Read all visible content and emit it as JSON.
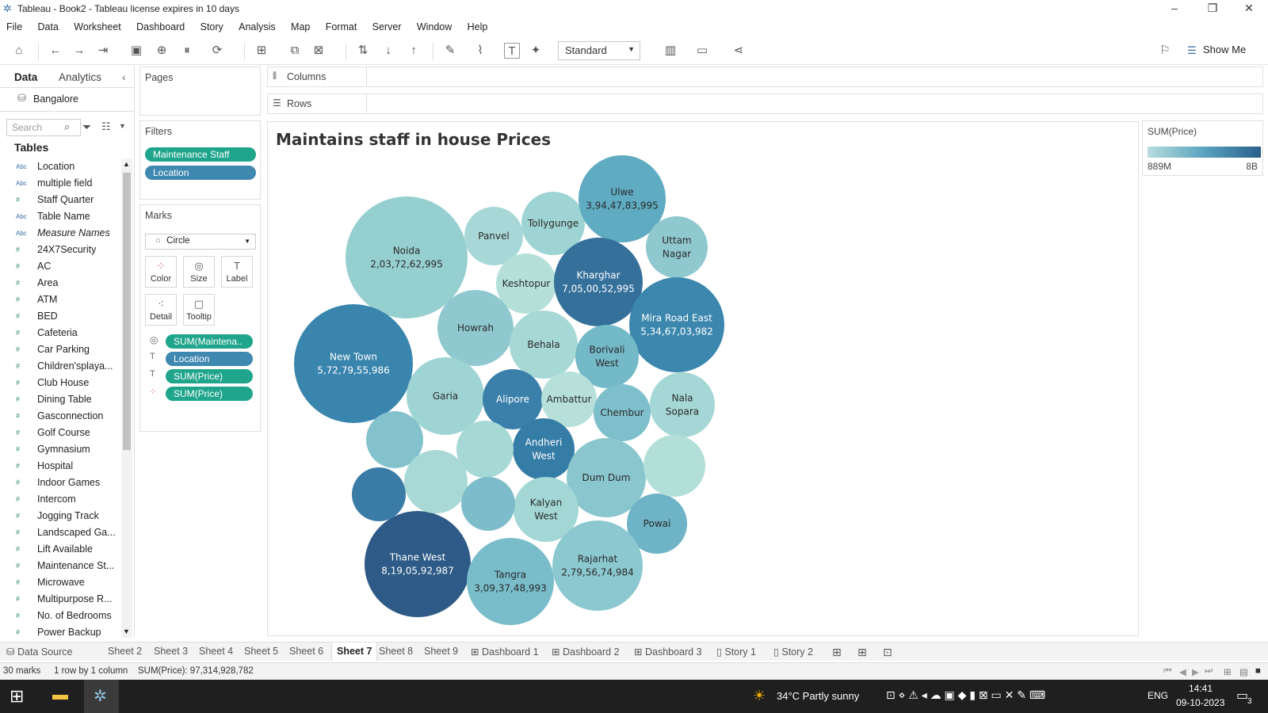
{
  "window": {
    "title": "Tableau - Book2 - Tableau license expires in 10 days",
    "minimize": "–",
    "maximize": "❐",
    "close": "✕"
  },
  "menu": [
    "File",
    "Data",
    "Worksheet",
    "Dashboard",
    "Story",
    "Analysis",
    "Map",
    "Format",
    "Server",
    "Window",
    "Help"
  ],
  "toolbar": {
    "fit_select": "Standard",
    "show_me": "Show Me"
  },
  "datapane": {
    "tab_data": "Data",
    "tab_analytics": "Analytics",
    "datasource": "Bangalore",
    "search_placeholder": "Search",
    "tables_heading": "Tables",
    "fields": [
      {
        "type": "abc",
        "name": "Location"
      },
      {
        "type": "abc",
        "name": "multiple field"
      },
      {
        "type": "num",
        "name": "Staff Quarter"
      },
      {
        "type": "abc",
        "name": "Table Name"
      },
      {
        "type": "abc",
        "name": "Measure Names"
      },
      {
        "type": "num",
        "name": "24X7Security"
      },
      {
        "type": "num",
        "name": "AC"
      },
      {
        "type": "num",
        "name": "Area"
      },
      {
        "type": "num",
        "name": "ATM"
      },
      {
        "type": "num",
        "name": "BED"
      },
      {
        "type": "num",
        "name": "Cafeteria"
      },
      {
        "type": "num",
        "name": "Car Parking"
      },
      {
        "type": "num",
        "name": "Children'splaya..."
      },
      {
        "type": "num",
        "name": "Club House"
      },
      {
        "type": "num",
        "name": "Dining Table"
      },
      {
        "type": "num",
        "name": "Gasconnection"
      },
      {
        "type": "num",
        "name": "Golf Course"
      },
      {
        "type": "num",
        "name": "Gymnasium"
      },
      {
        "type": "num",
        "name": "Hospital"
      },
      {
        "type": "num",
        "name": "Indoor Games"
      },
      {
        "type": "num",
        "name": "Intercom"
      },
      {
        "type": "num",
        "name": "Jogging Track"
      },
      {
        "type": "num",
        "name": "Landscaped Ga..."
      },
      {
        "type": "num",
        "name": "Lift Available"
      },
      {
        "type": "num",
        "name": "Maintenance St..."
      },
      {
        "type": "num",
        "name": "Microwave"
      },
      {
        "type": "num",
        "name": "Multipurpose R..."
      },
      {
        "type": "num",
        "name": "No. of Bedrooms"
      },
      {
        "type": "num",
        "name": "Power Backup"
      }
    ]
  },
  "pages_card": {
    "title": "Pages"
  },
  "filters_card": {
    "title": "Filters",
    "pills": [
      "Maintenance Staff",
      "Location"
    ]
  },
  "marks_card": {
    "title": "Marks",
    "mark_type": "Circle",
    "buttons": [
      "Color",
      "Size",
      "Label",
      "Detail",
      "Tooltip"
    ],
    "pills": [
      "SUM(Maintena..",
      "Location",
      "SUM(Price)",
      "SUM(Price)"
    ]
  },
  "shelves": {
    "columns": "Columns",
    "rows": "Rows"
  },
  "viz": {
    "title": "Maintains staff in house Prices"
  },
  "legend": {
    "title": "SUM(Price)",
    "min_label": "889M",
    "max_label": "8B"
  },
  "chart_data": {
    "type": "packed-bubble",
    "title": "Maintains staff in house Prices",
    "color_measure": "SUM(Price)",
    "size_measure": "SUM(Maintenance Staff)",
    "color_range": {
      "min": "889M",
      "max": "8B"
    },
    "bubbles": [
      {
        "label": "Noida",
        "value": "2,03,72,62,995",
        "color": "#96cfd0"
      },
      {
        "label": "Panvel",
        "value": "",
        "color": "#a7d8d7"
      },
      {
        "label": "Tollygunge",
        "value": "",
        "color": "#9fd4d4"
      },
      {
        "label": "Ulwe",
        "value": "3,94,47,83,995",
        "color": "#5fabc2"
      },
      {
        "label": "Uttam Nagar",
        "value": "",
        "color": "#8fc9cf"
      },
      {
        "label": "Keshtopur",
        "value": "",
        "color": "#b5e0d9"
      },
      {
        "label": "Kharghar",
        "value": "7,05,00,52,995",
        "color": "#35709b"
      },
      {
        "label": "Mira Road East",
        "value": "5,34,67,03,982",
        "color": "#3c87ae"
      },
      {
        "label": "Howrah",
        "value": "",
        "color": "#8fc9cf"
      },
      {
        "label": "Behala",
        "value": "",
        "color": "#a6d8d6"
      },
      {
        "label": "Borivali West",
        "value": "",
        "color": "#74b9c8"
      },
      {
        "label": "New Town",
        "value": "5,72,79,55,986",
        "color": "#3a85ad"
      },
      {
        "label": "Garia",
        "value": "",
        "color": "#9fd4d4"
      },
      {
        "label": "Alipore",
        "value": "",
        "color": "#3a80aa"
      },
      {
        "label": "Ambattur",
        "value": "",
        "color": "#b6e0d9"
      },
      {
        "label": "Chembur",
        "value": "",
        "color": "#7ebfcc"
      },
      {
        "label": "Nala Sopara",
        "value": "",
        "color": "#a4d7d5"
      },
      {
        "label": "Andheri West",
        "value": "",
        "color": "#357ca6"
      },
      {
        "label": "Dum Dum",
        "value": "",
        "color": "#8ac6ce"
      },
      {
        "label": "Powai",
        "value": "",
        "color": "#6fb3c6"
      },
      {
        "label": "Kalyan West",
        "value": "",
        "color": "#a3d7d5"
      },
      {
        "label": "Thane West",
        "value": "8,19,05,92,987",
        "color": "#2d5a86"
      },
      {
        "label": "Tangra",
        "value": "3,09,37,48,993",
        "color": "#79bdcb"
      },
      {
        "label": "Rajarhat",
        "value": "2,79,56,74,984",
        "color": "#8cc8cf"
      },
      {
        "label": "",
        "value": "",
        "color": "#83c2cd"
      },
      {
        "label": "",
        "value": "",
        "color": "#a6d8d6"
      },
      {
        "label": "",
        "value": "",
        "color": "#3a7ca6"
      },
      {
        "label": "",
        "value": "",
        "color": "#a8d9d6"
      },
      {
        "label": "",
        "value": "",
        "color": "#7dbccb"
      },
      {
        "label": "",
        "value": "",
        "color": "#b3dfd9"
      }
    ]
  },
  "sheet_tabs": [
    "Data Source",
    "Sheet 2",
    "Sheet 3",
    "Sheet 4",
    "Sheet 5",
    "Sheet 6",
    "Sheet 7",
    "Sheet 8",
    "Sheet 9",
    "Dashboard 1",
    "Dashboard 2",
    "Dashboard 3",
    "Story 1",
    "Story 2"
  ],
  "active_tab": "Sheet 7",
  "status": {
    "marks": "30 marks",
    "layout": "1 row by 1 column",
    "sum": "SUM(Price): 97,314,928,782"
  },
  "taskbar": {
    "weather": "34°C  Partly sunny",
    "lang": "ENG",
    "time": "14:41",
    "date": "09-10-2023",
    "notif": "3"
  }
}
